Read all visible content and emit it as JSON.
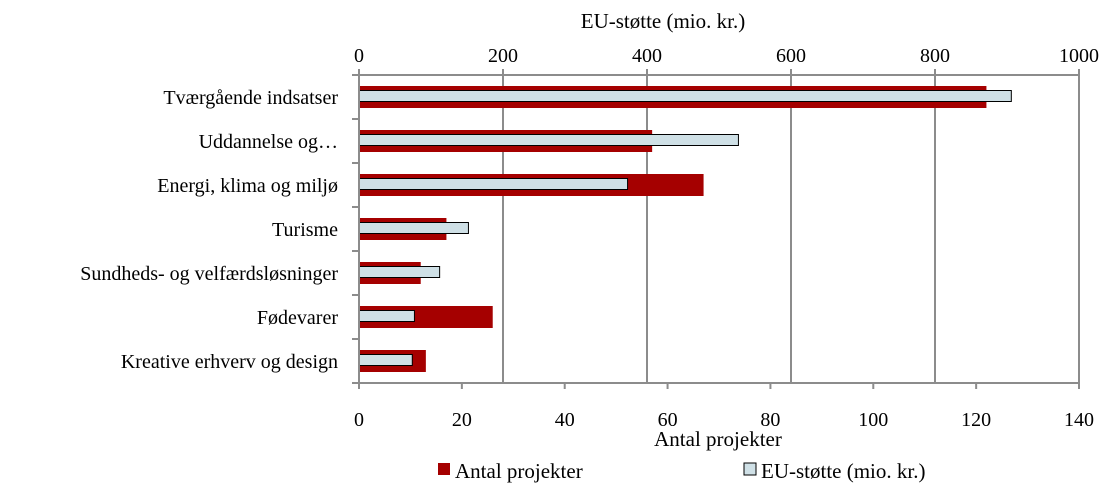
{
  "chart_data": {
    "type": "bar",
    "orientation": "horizontal",
    "categories": [
      "Tværgående indsatser",
      "Uddannelse og…",
      "Energi, klima og miljø",
      "Turisme",
      "Sundheds- og velfærdsløsninger",
      "Fødevarer",
      "Kreative erhverv og design"
    ],
    "series": [
      {
        "name": "Antal projekter",
        "axis": "bottom",
        "color": "#A50000",
        "values": [
          122,
          57,
          67,
          17,
          12,
          26,
          13
        ]
      },
      {
        "name": "EU-støtte (mio. kr.)",
        "axis": "top",
        "color": "#CFE0E6",
        "values": [
          906,
          527,
          373,
          152,
          112,
          77,
          74
        ]
      }
    ],
    "bottom_axis": {
      "label": "Antal projekter",
      "range": [
        0,
        140
      ],
      "ticks": [
        "0",
        "20",
        "40",
        "60",
        "80",
        "100",
        "120",
        "140"
      ]
    },
    "top_axis": {
      "label": "EU-støtte (mio. kr.)",
      "range": [
        0,
        1000
      ],
      "ticks": [
        "0",
        "200",
        "400",
        "600",
        "800",
        "1000"
      ]
    },
    "grid": true,
    "legend_position": "bottom"
  }
}
